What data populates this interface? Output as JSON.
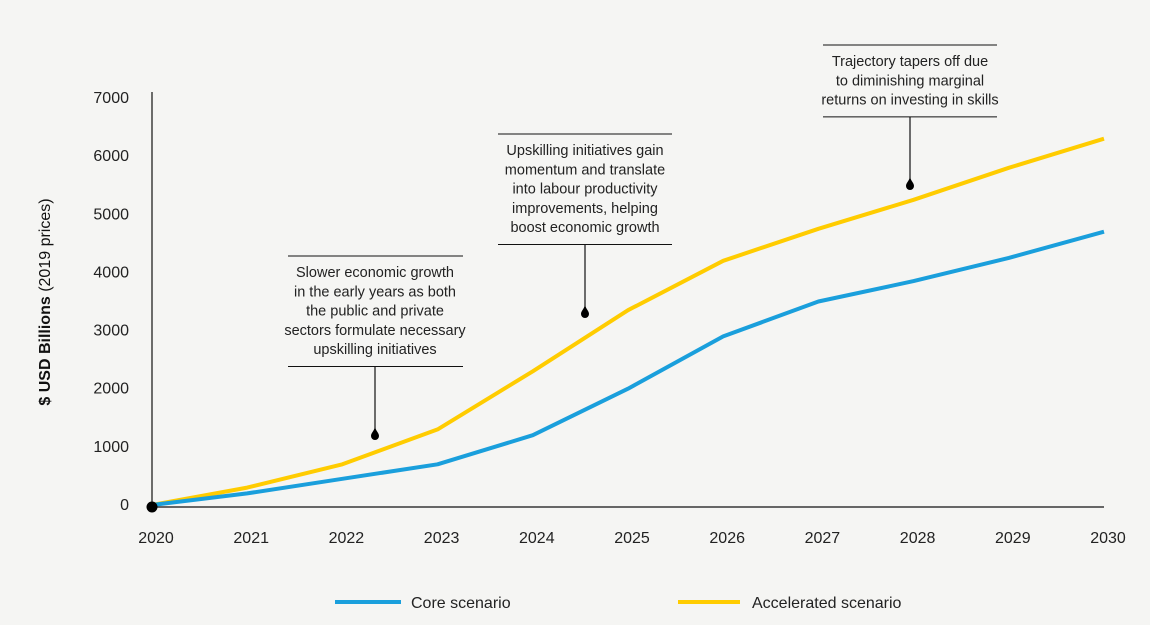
{
  "chart_data": {
    "type": "line",
    "title": "",
    "xlabel": "",
    "ylabel_bold": "$ USD Billions",
    "ylabel_rest": " (2019 prices)",
    "x": [
      "2020",
      "2021",
      "2022",
      "2023",
      "2024",
      "2025",
      "2026",
      "2027",
      "2028",
      "2029",
      "2030"
    ],
    "ylim": [
      0,
      7000
    ],
    "yticks": [
      "0",
      "1000",
      "2000",
      "3000",
      "4000",
      "5000",
      "6000",
      "7000"
    ],
    "grid": false,
    "legend_position": "bottom",
    "series": [
      {
        "name": "Core scenario",
        "color": "#1a9fdc",
        "values": [
          0,
          200,
          450,
          700,
          1200,
          2000,
          2900,
          3500,
          3850,
          4250,
          4700
        ]
      },
      {
        "name": "Accelerated scenario",
        "color": "#ffcc00",
        "values": [
          0,
          300,
          700,
          1300,
          2300,
          3350,
          4200,
          4750,
          5250,
          5800,
          6300
        ]
      }
    ],
    "annotations": [
      {
        "x": "2022",
        "lines": [
          "Slower economic growth",
          "in the early years as both",
          "the public and private",
          "sectors formulate necessary",
          "upskilling initiatives"
        ]
      },
      {
        "x": "2024",
        "lines": [
          "Upskilling initiatives gain",
          "momentum and translate",
          "into labour productivity",
          "improvements, helping",
          "boost economic growth"
        ]
      },
      {
        "x": "2028",
        "lines": [
          "Trajectory tapers off due",
          "to diminishing marginal",
          "returns on investing in skills"
        ]
      }
    ]
  }
}
